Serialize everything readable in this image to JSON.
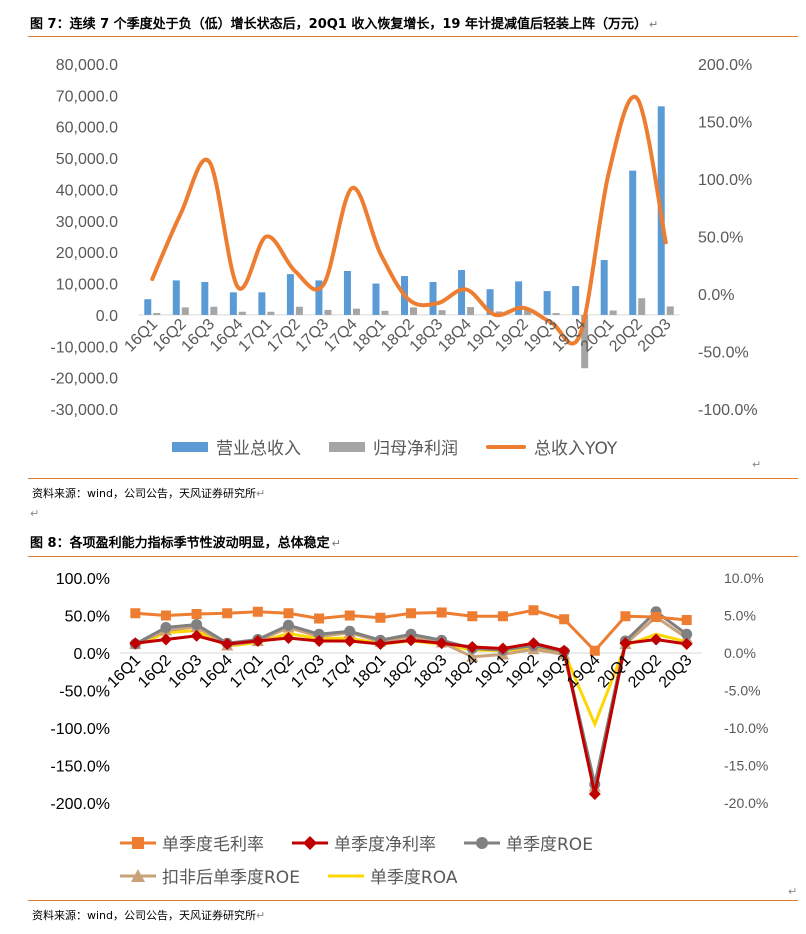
{
  "fig7": {
    "title": "图 7：连续 7 个季度处于负（低）增长状态后，20Q1 收入恢复增长，19 年计提减值后轻装上阵（万元）",
    "source": "资料来源：wind，公司公告，天风证券研究所"
  },
  "fig8": {
    "title": "图 8：各项盈利能力指标季节性波动明显，总体稳定",
    "source": "资料来源：wind，公司公告，天风证券研究所"
  },
  "colors": {
    "accent_rule": "#E07B2A"
  },
  "chart_data": [
    {
      "type": "bar",
      "categories": [
        "16Q1",
        "16Q2",
        "16Q3",
        "16Q4",
        "17Q1",
        "17Q2",
        "17Q3",
        "17Q4",
        "18Q1",
        "18Q2",
        "18Q3",
        "18Q4",
        "19Q1",
        "19Q2",
        "19Q3",
        "19Q4",
        "20Q1",
        "20Q2",
        "20Q3"
      ],
      "y_left": {
        "ylim": [
          -30000,
          80000
        ],
        "ticks": [
          "80,000.0",
          "70,000.0",
          "60,000.0",
          "50,000.0",
          "40,000.0",
          "30,000.0",
          "20,000.0",
          "10,000.0",
          "0.0",
          "-10,000.0",
          "-20,000.0",
          "-30,000.0"
        ]
      },
      "y_right": {
        "ylim": [
          -100,
          200
        ],
        "ticks": [
          "200.0%",
          "150.0%",
          "100.0%",
          "50.0%",
          "0.0%",
          "-50.0%",
          "-100.0%"
        ]
      },
      "series": [
        {
          "name": "营业总收入",
          "kind": "bar",
          "axis": "left",
          "color": "#5B9BD5",
          "values": [
            5000,
            11000,
            10500,
            7200,
            7200,
            13000,
            11000,
            14000,
            10000,
            12400,
            10500,
            14300,
            8200,
            10700,
            7600,
            9200,
            17500,
            46000,
            66500
          ]
        },
        {
          "name": "归母净利润",
          "kind": "bar",
          "axis": "left",
          "color": "#A5A5A5",
          "values": [
            600,
            2400,
            2600,
            1000,
            1000,
            2600,
            1600,
            2000,
            1300,
            2400,
            1500,
            2500,
            1100,
            1800,
            600,
            -17000,
            1400,
            5300,
            2700
          ]
        },
        {
          "name": "总收入YOY",
          "kind": "line",
          "axis": "right",
          "color": "#ED7D31",
          "values": [
            13,
            70,
            115,
            6,
            50,
            20,
            8,
            92,
            35,
            -5,
            -8,
            4,
            -18,
            -12,
            -25,
            -35,
            105,
            170,
            45
          ]
        }
      ],
      "legend": "bottom"
    },
    {
      "type": "line",
      "categories": [
        "16Q1",
        "16Q2",
        "16Q3",
        "16Q4",
        "17Q1",
        "17Q2",
        "17Q3",
        "17Q4",
        "18Q1",
        "18Q2",
        "18Q3",
        "18Q4",
        "19Q1",
        "19Q2",
        "19Q3",
        "19Q4",
        "20Q1",
        "20Q2",
        "20Q3"
      ],
      "y_left": {
        "ylim": [
          -200,
          100
        ],
        "ticks": [
          "100.0%",
          "50.0%",
          "0.0%",
          "-50.0%",
          "-100.0%",
          "-150.0%",
          "-200.0%"
        ]
      },
      "y_right": {
        "ylim": [
          -20,
          10
        ],
        "ticks": [
          "10.0%",
          "5.0%",
          "0.0%",
          "-5.0%",
          "-10.0%",
          "-15.0%",
          "-20.0%"
        ]
      },
      "series": [
        {
          "name": "单季度毛利率",
          "axis": "left",
          "color": "#ED7D31",
          "marker": "square",
          "values": [
            53,
            50,
            52,
            53,
            55,
            53,
            46,
            50,
            47,
            53,
            54,
            49,
            49,
            57,
            45,
            3,
            49,
            48,
            44
          ]
        },
        {
          "name": "单季度净利率",
          "axis": "left",
          "color": "#C00000",
          "marker": "diamond",
          "values": [
            13,
            18,
            23,
            12,
            16,
            20,
            16,
            16,
            12,
            17,
            13,
            8,
            6,
            13,
            3,
            -188,
            13,
            18,
            12
          ]
        },
        {
          "name": "单季度ROE",
          "axis": "right",
          "color": "#808080",
          "marker": "circle",
          "values": [
            1.2,
            3.4,
            3.8,
            1.3,
            1.8,
            3.7,
            2.5,
            2.9,
            1.7,
            2.5,
            1.7,
            0.6,
            0.4,
            1.0,
            0.2,
            -17.5,
            1.6,
            5.5,
            2.5
          ]
        },
        {
          "name": "扣非后单季度ROE",
          "axis": "right",
          "color": "#C9A27A",
          "marker": "triangle",
          "values": [
            1.2,
            3.0,
            3.5,
            1.0,
            1.6,
            3.4,
            2.2,
            2.7,
            1.5,
            2.2,
            1.4,
            -0.5,
            -0.2,
            0.5,
            -0.2,
            -17.8,
            1.2,
            4.8,
            2.0
          ]
        },
        {
          "name": "单季度ROA",
          "axis": "right",
          "color": "#FFD700",
          "marker": "none",
          "values": [
            1.0,
            2.7,
            3.0,
            0.9,
            1.4,
            2.6,
            1.9,
            2.0,
            1.2,
            1.6,
            1.2,
            0.4,
            0.3,
            0.7,
            0.1,
            -9.5,
            1.0,
            2.5,
            1.5
          ]
        }
      ],
      "legend": "bottom"
    }
  ]
}
